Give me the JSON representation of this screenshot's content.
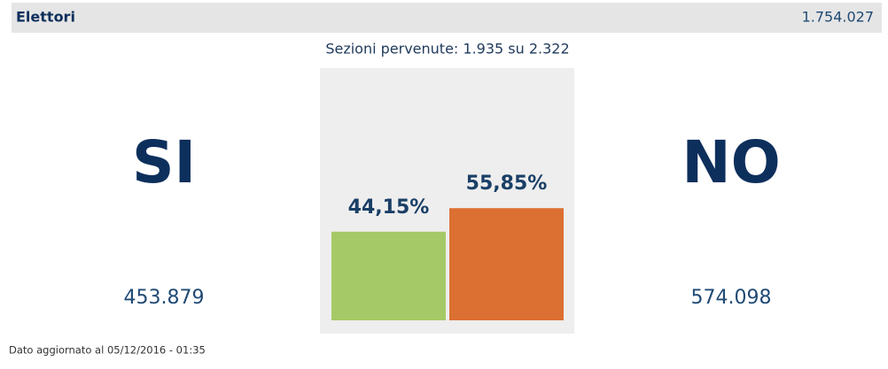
{
  "header": {
    "label": "Elettori",
    "value": "1.754.027"
  },
  "sections": "Sezioni pervenute: 1.935 su 2.322",
  "chart_data": {
    "type": "bar",
    "categories": [
      "SI",
      "NO"
    ],
    "values": [
      44.15,
      55.85
    ],
    "value_labels": [
      "44,15%",
      "55,85%"
    ],
    "colors": [
      "#a6c967",
      "#dc7033"
    ]
  },
  "votes": [
    "453.879",
    "574.098"
  ],
  "footer": "Dato aggiornato al 05/12/2016 - 01:35"
}
